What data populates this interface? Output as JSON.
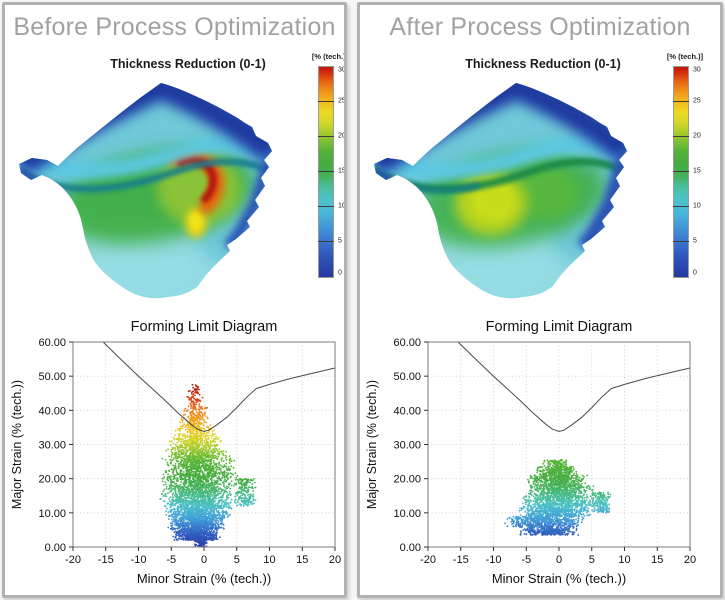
{
  "page": {
    "background": "#f7f7f7",
    "panel_border": "#b2b2b2"
  },
  "thickness_label": "Thickness Reduction  (0-1)",
  "colorbar": {
    "header": "[% (tech.)]",
    "min": 0,
    "max": 30,
    "tick_values": [
      30,
      25,
      20,
      15,
      10,
      5,
      0
    ],
    "gradient_stops": [
      [
        0,
        "#27379e"
      ],
      [
        3,
        "#2f56bb"
      ],
      [
        5,
        "#3a74cc"
      ],
      [
        7,
        "#4295d6"
      ],
      [
        9,
        "#49b4da"
      ],
      [
        11,
        "#4dc3cd"
      ],
      [
        13,
        "#49bd9a"
      ],
      [
        14.5,
        "#45b258"
      ],
      [
        16,
        "#45ab40"
      ],
      [
        18,
        "#55b23a"
      ],
      [
        20,
        "#93c530"
      ],
      [
        22,
        "#d2d72a"
      ],
      [
        23.5,
        "#ecda25"
      ],
      [
        25,
        "#f3bb1e"
      ],
      [
        26.5,
        "#f0931a"
      ],
      [
        28,
        "#e66212"
      ],
      [
        29,
        "#d6330e"
      ],
      [
        30,
        "#c4140c"
      ]
    ]
  },
  "contour_colors": {
    "base": "#6fc9d8",
    "light": "#96dde4",
    "top_band": "#2646aa",
    "top_dark": "#1d389b",
    "edge_blue": "#2a52b4",
    "cyan_band": "#5cc8e2",
    "crease_teal": "#137d8e",
    "crease_green": "#1b8a46",
    "green": "#3dad3f",
    "green_mid": "#5fba38",
    "yellow_green": "#9cc832",
    "core_after": "#bcd41f",
    "core_after_bright": "#c9de1a",
    "hot_orange": "#e8650f",
    "hot_red": "#b5170b",
    "hot_yellow": "#e5d41d",
    "hot_yellow_bright": "#f0e318"
  },
  "panels": [
    {
      "title": "Before Process Optimization",
      "variant": "before"
    },
    {
      "title": "After Process Optimization",
      "variant": "after"
    }
  ],
  "chart_data": [
    {
      "type": "scatter",
      "title": "Forming Limit Diagram",
      "xlabel": "Minor Strain (% (tech.))",
      "ylabel": "Major Strain (% (tech.))",
      "xlim": [
        -20,
        20
      ],
      "ylim": [
        0,
        60
      ],
      "xticks": [
        -20,
        -15,
        -10,
        -5,
        0,
        5,
        10,
        15,
        20
      ],
      "xtick_labels": [
        "-20",
        "-15",
        "-10",
        "-5",
        "0",
        "5",
        "10",
        "15",
        "20"
      ],
      "yticks": [
        0,
        10,
        20,
        30,
        40,
        50,
        60
      ],
      "ytick_labels": [
        "0.00",
        "10.00",
        "20.00",
        "30.00",
        "40.00",
        "50.00",
        "60.00"
      ],
      "grid": true,
      "legend": "none",
      "flc_curve": [
        [
          -15.4,
          60
        ],
        [
          -13,
          55.5
        ],
        [
          -10,
          50
        ],
        [
          -8,
          46.5
        ],
        [
          -6,
          43
        ],
        [
          -4,
          39.3
        ],
        [
          -2,
          35.9
        ],
        [
          -1,
          34.5
        ],
        [
          0,
          33.8
        ],
        [
          0.8,
          34.2
        ],
        [
          2,
          35.8
        ],
        [
          3.5,
          38
        ],
        [
          5,
          40.8
        ],
        [
          6.5,
          43.8
        ],
        [
          8,
          46.4
        ],
        [
          10,
          47.6
        ],
        [
          13,
          49.2
        ],
        [
          16,
          50.6
        ],
        [
          20,
          52.4
        ]
      ],
      "point_color_by": "major_strain",
      "colormap": [
        [
          0,
          "#2b3da6"
        ],
        [
          4,
          "#3160c0"
        ],
        [
          8,
          "#3f9bd6"
        ],
        [
          12,
          "#4cc0cc"
        ],
        [
          15,
          "#49bd8f"
        ],
        [
          18,
          "#47b257"
        ],
        [
          21,
          "#47ad3e"
        ],
        [
          25,
          "#56b437"
        ],
        [
          28,
          "#8ec431"
        ],
        [
          31,
          "#d2d32a"
        ],
        [
          34,
          "#ecca24"
        ],
        [
          37,
          "#f0a41d"
        ],
        [
          40,
          "#ea7d17"
        ],
        [
          43,
          "#dd4510"
        ],
        [
          46,
          "#c21d0c"
        ],
        [
          50,
          "#b5120a"
        ]
      ],
      "scatter_extent": {
        "minor": [
          -8,
          8
        ],
        "major": [
          0,
          47.5
        ]
      },
      "density_bands": [
        [
          0,
          2,
          -1.5,
          0.5,
          80
        ],
        [
          2,
          5,
          -5,
          2.5,
          500
        ],
        [
          5,
          8,
          -5.5,
          3.5,
          520
        ],
        [
          8,
          11,
          -6,
          4.5,
          540
        ],
        [
          11,
          14,
          -6.5,
          5,
          530
        ],
        [
          12,
          20,
          4.5,
          8,
          220
        ],
        [
          14,
          18,
          -7,
          5,
          520
        ],
        [
          18,
          22,
          -7,
          5.5,
          500
        ],
        [
          22,
          26,
          -6.5,
          5,
          440
        ],
        [
          26,
          29,
          -6,
          4,
          330
        ],
        [
          29,
          32,
          -5.5,
          3,
          250
        ],
        [
          32,
          35,
          -4.5,
          2,
          165
        ],
        [
          35,
          38,
          -3.8,
          1.2,
          110
        ],
        [
          38,
          41,
          -3.2,
          0.6,
          75
        ],
        [
          41,
          44,
          -2.8,
          0,
          50
        ],
        [
          44,
          47.5,
          -2.4,
          -0.4,
          32
        ]
      ],
      "seed": 7
    },
    {
      "type": "scatter",
      "title": "Forming Limit Diagram",
      "xlabel": "Minor Strain (% (tech.))",
      "ylabel": "Major Strain (% (tech.))",
      "xlim": [
        -20,
        20
      ],
      "ylim": [
        0,
        60
      ],
      "xticks": [
        -20,
        -15,
        -10,
        -5,
        0,
        5,
        10,
        15,
        20
      ],
      "xtick_labels": [
        "-20",
        "-15",
        "-10",
        "-5",
        "0",
        "5",
        "10",
        "15",
        "20"
      ],
      "yticks": [
        0,
        10,
        20,
        30,
        40,
        50,
        60
      ],
      "ytick_labels": [
        "0.00",
        "10.00",
        "20.00",
        "30.00",
        "40.00",
        "50.00",
        "60.00"
      ],
      "grid": true,
      "legend": "none",
      "flc_curve": [
        [
          -15.4,
          60
        ],
        [
          -13,
          55.5
        ],
        [
          -10,
          50
        ],
        [
          -8,
          46.5
        ],
        [
          -6,
          43
        ],
        [
          -4,
          39.3
        ],
        [
          -2,
          35.9
        ],
        [
          -1,
          34.5
        ],
        [
          0,
          33.8
        ],
        [
          0.8,
          34.2
        ],
        [
          2,
          35.8
        ],
        [
          3.5,
          38
        ],
        [
          5,
          40.8
        ],
        [
          6.5,
          43.8
        ],
        [
          8,
          46.4
        ],
        [
          10,
          47.6
        ],
        [
          13,
          49.2
        ],
        [
          16,
          50.6
        ],
        [
          20,
          52.4
        ]
      ],
      "point_color_by": "major_strain",
      "colormap": [
        [
          0,
          "#2b3da6"
        ],
        [
          4,
          "#3160c0"
        ],
        [
          8,
          "#3f9bd6"
        ],
        [
          12,
          "#4cc0cc"
        ],
        [
          15,
          "#49bd8f"
        ],
        [
          18,
          "#47b257"
        ],
        [
          21,
          "#47ad3e"
        ],
        [
          25,
          "#56b437"
        ],
        [
          28,
          "#8ec431"
        ],
        [
          31,
          "#d2d32a"
        ],
        [
          34,
          "#ecca24"
        ],
        [
          37,
          "#f0a41d"
        ],
        [
          40,
          "#ea7d17"
        ],
        [
          43,
          "#dd4510"
        ],
        [
          46,
          "#c21d0c"
        ],
        [
          50,
          "#b5120a"
        ]
      ],
      "scatter_extent": {
        "minor": [
          -9,
          8
        ],
        "major": [
          3,
          25.5
        ]
      },
      "density_bands": [
        [
          3.5,
          6,
          -6.5,
          3,
          380
        ],
        [
          6,
          9,
          -8.5,
          4,
          500
        ],
        [
          9,
          12,
          -6.5,
          5.5,
          500
        ],
        [
          10,
          16,
          5,
          8,
          190
        ],
        [
          12,
          15,
          -6,
          6,
          470
        ],
        [
          15,
          18,
          -5.5,
          5.5,
          440
        ],
        [
          18,
          21,
          -5,
          4.5,
          380
        ],
        [
          21,
          23.5,
          -4,
          3,
          220
        ],
        [
          23.5,
          25.5,
          -2.8,
          1.8,
          90
        ]
      ],
      "seed": 99
    }
  ]
}
